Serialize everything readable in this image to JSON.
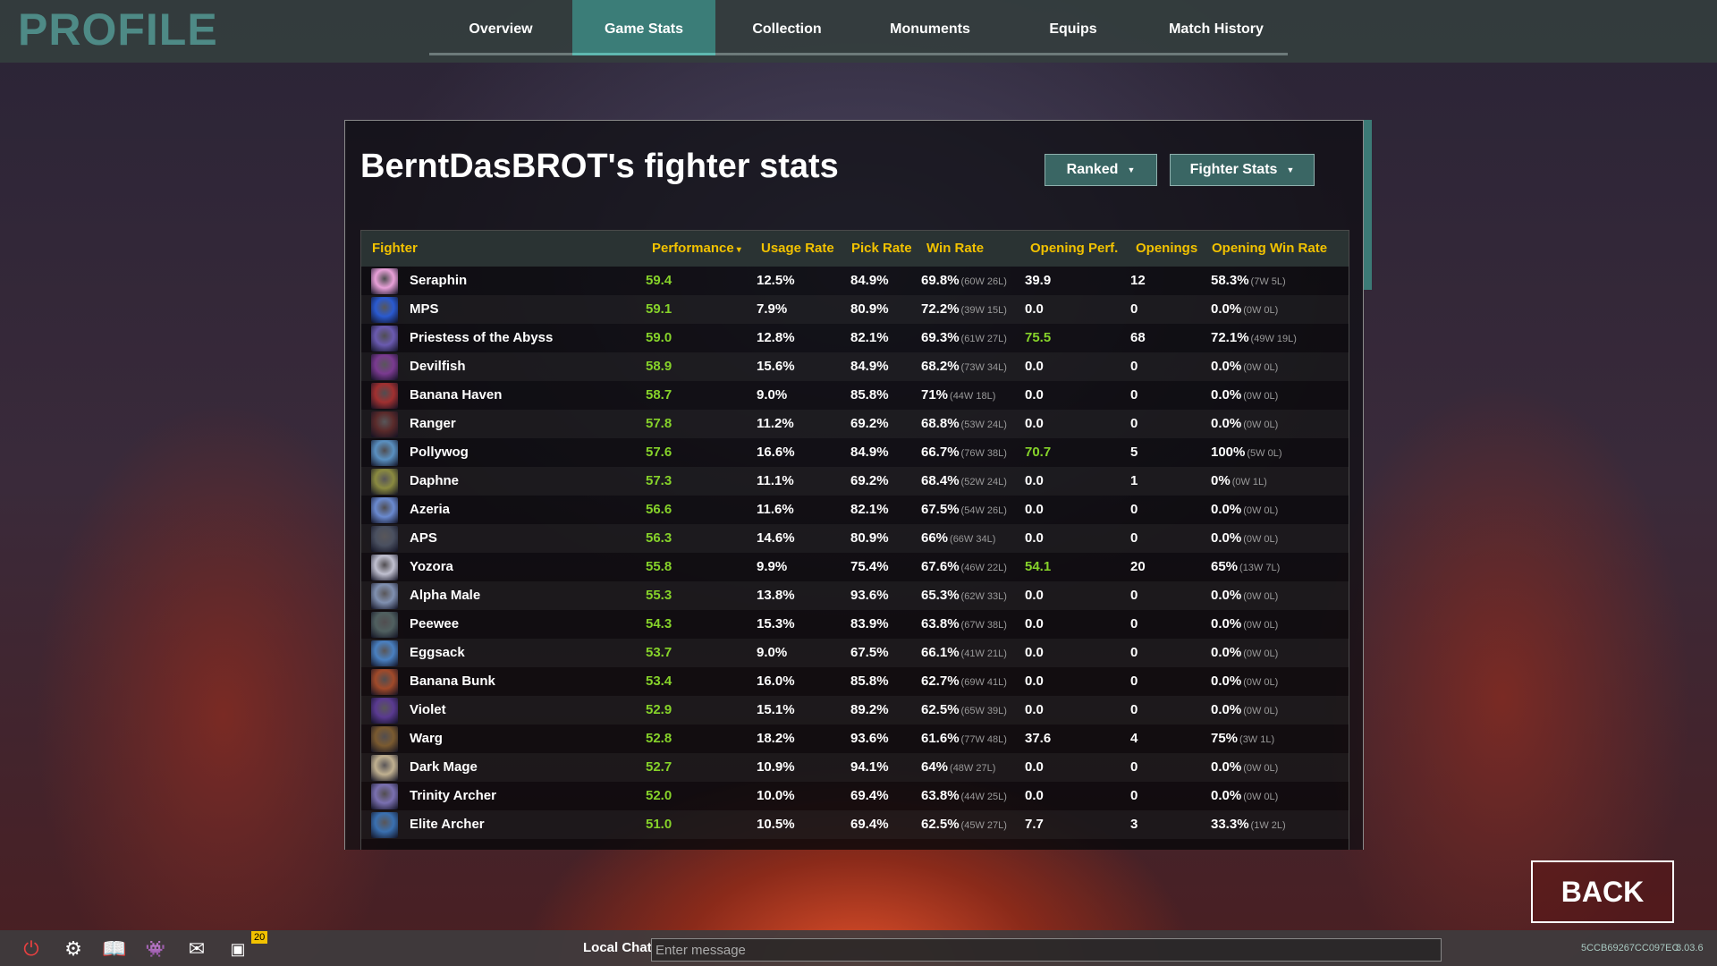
{
  "header": {
    "logo": "PROFILE",
    "tabs": [
      {
        "label": "Overview"
      },
      {
        "label": "Game Stats",
        "active": true
      },
      {
        "label": "Collection"
      },
      {
        "label": "Monuments"
      },
      {
        "label": "Equips"
      },
      {
        "label": "Match History"
      }
    ]
  },
  "panel": {
    "title": "BerntDasBROT's fighter stats",
    "mode_dropdown": "Ranked",
    "stats_dropdown": "Fighter Stats"
  },
  "table": {
    "columns": [
      "Fighter",
      "Performance",
      "Usage Rate",
      "Pick Rate",
      "Win Rate",
      "Opening Perf.",
      "Openings",
      "Opening Win Rate"
    ],
    "sort_indicator": "▾",
    "rows": [
      {
        "fighter": "Seraphin",
        "perf": "59.4",
        "usage": "12.5%",
        "pick": "84.9%",
        "win": "69.8%",
        "win_rec": "(60W 26L)",
        "operf": "39.9",
        "operf_high": false,
        "openings": "12",
        "owr": "58.3%",
        "owr_rec": "(7W 5L)",
        "color": "#e8a0d8"
      },
      {
        "fighter": "MPS",
        "perf": "59.1",
        "usage": "7.9%",
        "pick": "80.9%",
        "win": "72.2%",
        "win_rec": "(39W 15L)",
        "operf": "0.0",
        "operf_high": false,
        "openings": "0",
        "owr": "0.0%",
        "owr_rec": "(0W 0L)",
        "color": "#2a5ad0"
      },
      {
        "fighter": "Priestess of the Abyss",
        "perf": "59.0",
        "usage": "12.8%",
        "pick": "82.1%",
        "win": "69.3%",
        "win_rec": "(61W 27L)",
        "operf": "75.5",
        "operf_high": true,
        "openings": "68",
        "owr": "72.1%",
        "owr_rec": "(49W 19L)",
        "color": "#6a5ab0"
      },
      {
        "fighter": "Devilfish",
        "perf": "58.9",
        "usage": "15.6%",
        "pick": "84.9%",
        "win": "68.2%",
        "win_rec": "(73W 34L)",
        "operf": "0.0",
        "operf_high": false,
        "openings": "0",
        "owr": "0.0%",
        "owr_rec": "(0W 0L)",
        "color": "#7a3a90"
      },
      {
        "fighter": "Banana Haven",
        "perf": "58.7",
        "usage": "9.0%",
        "pick": "85.8%",
        "win": "71%",
        "win_rec": "(44W 18L)",
        "operf": "0.0",
        "operf_high": false,
        "openings": "0",
        "owr": "0.0%",
        "owr_rec": "(0W 0L)",
        "color": "#a03030"
      },
      {
        "fighter": "Ranger",
        "perf": "57.8",
        "usage": "11.2%",
        "pick": "69.2%",
        "win": "68.8%",
        "win_rec": "(53W 24L)",
        "operf": "0.0",
        "operf_high": false,
        "openings": "0",
        "owr": "0.0%",
        "owr_rec": "(0W 0L)",
        "color": "#5a2a2a"
      },
      {
        "fighter": "Pollywog",
        "perf": "57.6",
        "usage": "16.6%",
        "pick": "84.9%",
        "win": "66.7%",
        "win_rec": "(76W 38L)",
        "operf": "70.7",
        "operf_high": true,
        "openings": "5",
        "owr": "100%",
        "owr_rec": "(5W 0L)",
        "color": "#5a90c0"
      },
      {
        "fighter": "Daphne",
        "perf": "57.3",
        "usage": "11.1%",
        "pick": "69.2%",
        "win": "68.4%",
        "win_rec": "(52W 24L)",
        "operf": "0.0",
        "operf_high": false,
        "openings": "1",
        "owr": "0%",
        "owr_rec": "(0W 1L)",
        "color": "#8a8a40"
      },
      {
        "fighter": "Azeria",
        "perf": "56.6",
        "usage": "11.6%",
        "pick": "82.1%",
        "win": "67.5%",
        "win_rec": "(54W 26L)",
        "operf": "0.0",
        "operf_high": false,
        "openings": "0",
        "owr": "0.0%",
        "owr_rec": "(0W 0L)",
        "color": "#6a8ad0"
      },
      {
        "fighter": "APS",
        "perf": "56.3",
        "usage": "14.6%",
        "pick": "80.9%",
        "win": "66%",
        "win_rec": "(66W 34L)",
        "operf": "0.0",
        "operf_high": false,
        "openings": "0",
        "owr": "0.0%",
        "owr_rec": "(0W 0L)",
        "color": "#4a5060"
      },
      {
        "fighter": "Yozora",
        "perf": "55.8",
        "usage": "9.9%",
        "pick": "75.4%",
        "win": "67.6%",
        "win_rec": "(46W 22L)",
        "operf": "54.1",
        "operf_high": true,
        "openings": "20",
        "owr": "65%",
        "owr_rec": "(13W 7L)",
        "color": "#c0c0d0"
      },
      {
        "fighter": "Alpha Male",
        "perf": "55.3",
        "usage": "13.8%",
        "pick": "93.6%",
        "win": "65.3%",
        "win_rec": "(62W 33L)",
        "operf": "0.0",
        "operf_high": false,
        "openings": "0",
        "owr": "0.0%",
        "owr_rec": "(0W 0L)",
        "color": "#8090b0"
      },
      {
        "fighter": "Peewee",
        "perf": "54.3",
        "usage": "15.3%",
        "pick": "83.9%",
        "win": "63.8%",
        "win_rec": "(67W 38L)",
        "operf": "0.0",
        "operf_high": false,
        "openings": "0",
        "owr": "0.0%",
        "owr_rec": "(0W 0L)",
        "color": "#506060"
      },
      {
        "fighter": "Eggsack",
        "perf": "53.7",
        "usage": "9.0%",
        "pick": "67.5%",
        "win": "66.1%",
        "win_rec": "(41W 21L)",
        "operf": "0.0",
        "operf_high": false,
        "openings": "0",
        "owr": "0.0%",
        "owr_rec": "(0W 0L)",
        "color": "#4a80c0"
      },
      {
        "fighter": "Banana Bunk",
        "perf": "53.4",
        "usage": "16.0%",
        "pick": "85.8%",
        "win": "62.7%",
        "win_rec": "(69W 41L)",
        "operf": "0.0",
        "operf_high": false,
        "openings": "0",
        "owr": "0.0%",
        "owr_rec": "(0W 0L)",
        "color": "#a04a2a"
      },
      {
        "fighter": "Violet",
        "perf": "52.9",
        "usage": "15.1%",
        "pick": "89.2%",
        "win": "62.5%",
        "win_rec": "(65W 39L)",
        "operf": "0.0",
        "operf_high": false,
        "openings": "0",
        "owr": "0.0%",
        "owr_rec": "(0W 0L)",
        "color": "#5a3a90"
      },
      {
        "fighter": "Warg",
        "perf": "52.8",
        "usage": "18.2%",
        "pick": "93.6%",
        "win": "61.6%",
        "win_rec": "(77W 48L)",
        "operf": "37.6",
        "operf_high": false,
        "openings": "4",
        "owr": "75%",
        "owr_rec": "(3W 1L)",
        "color": "#7a5a30"
      },
      {
        "fighter": "Dark Mage",
        "perf": "52.7",
        "usage": "10.9%",
        "pick": "94.1%",
        "win": "64%",
        "win_rec": "(48W 27L)",
        "operf": "0.0",
        "operf_high": false,
        "openings": "0",
        "owr": "0.0%",
        "owr_rec": "(0W 0L)",
        "color": "#c0b090"
      },
      {
        "fighter": "Trinity Archer",
        "perf": "52.0",
        "usage": "10.0%",
        "pick": "69.4%",
        "win": "63.8%",
        "win_rec": "(44W 25L)",
        "operf": "0.0",
        "operf_high": false,
        "openings": "0",
        "owr": "0.0%",
        "owr_rec": "(0W 0L)",
        "color": "#7a70b0"
      },
      {
        "fighter": "Elite Archer",
        "perf": "51.0",
        "usage": "10.5%",
        "pick": "69.4%",
        "win": "62.5%",
        "win_rec": "(45W 27L)",
        "operf": "7.7",
        "operf_high": false,
        "openings": "3",
        "owr": "33.3%",
        "owr_rec": "(1W 2L)",
        "color": "#3a70b0"
      }
    ]
  },
  "back_label": "BACK",
  "bottombar": {
    "icons": [
      "power-icon",
      "gear-icon",
      "book-icon",
      "discord-icon",
      "mail-icon",
      "twitch-icon"
    ],
    "twitch_badge": "20",
    "chat_label": "Local Chat",
    "chat_placeholder": "Enter message",
    "session_id": "5CCB69267CC097EC",
    "version": "8.03.6"
  },
  "colors": {
    "accent": "#3b7d78",
    "header_text": "#f2c200",
    "performance_green": "#86d22a"
  }
}
